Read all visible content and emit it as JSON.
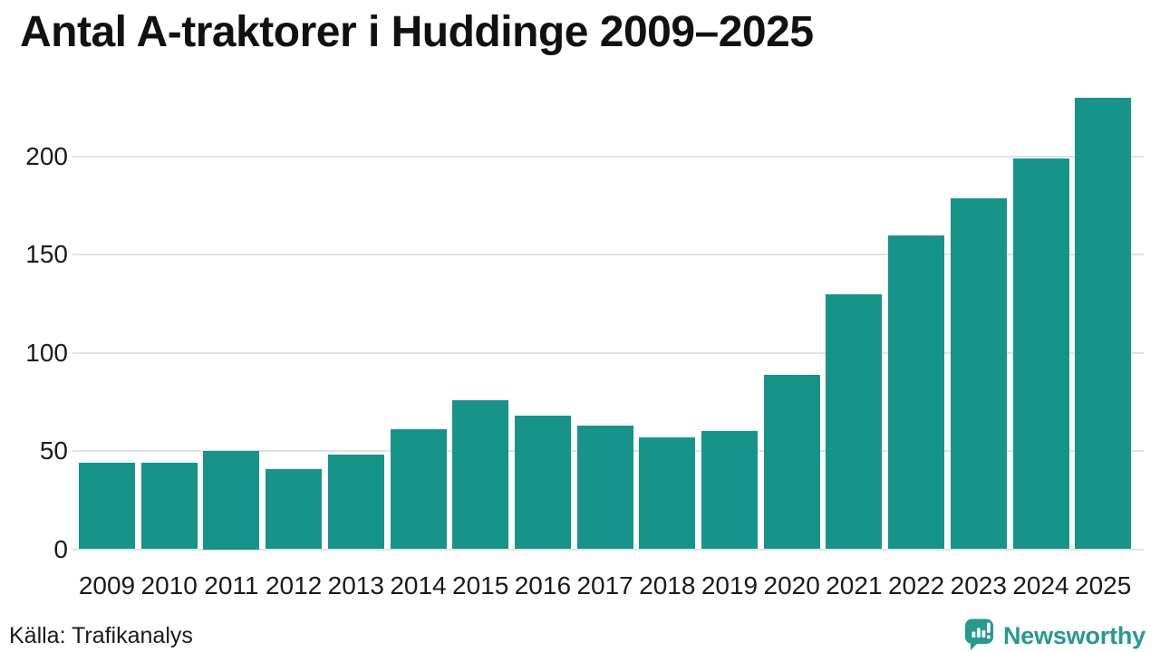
{
  "chart_data": {
    "type": "bar",
    "title": "Antal A-traktorer i Huddinge 2009–2025",
    "categories": [
      "2009",
      "2010",
      "2011",
      "2012",
      "2013",
      "2014",
      "2015",
      "2016",
      "2017",
      "2018",
      "2019",
      "2020",
      "2021",
      "2022",
      "2023",
      "2024",
      "2025"
    ],
    "values": [
      44,
      44,
      50,
      41,
      48,
      61,
      76,
      68,
      63,
      57,
      60,
      89,
      130,
      160,
      179,
      199,
      230
    ],
    "xlabel": "",
    "ylabel": "",
    "ylim": [
      0,
      232
    ],
    "yticks": [
      0,
      50,
      100,
      150,
      200
    ],
    "grid": true,
    "legend": "none",
    "source": "Källa: Trafikanalys"
  },
  "branding": {
    "name": "Newsworthy",
    "logo_icon": "speech-bubble-with-bar-chart-and-exclamation"
  },
  "colors": {
    "bar": "#16948a",
    "grid": "#e2e2e2",
    "text": "#1a1a1a",
    "brand": "#259a8d",
    "background": "#ffffff"
  }
}
